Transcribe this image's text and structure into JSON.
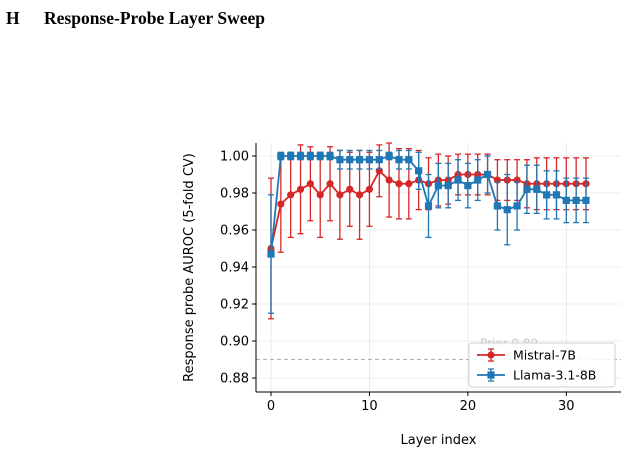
{
  "section": {
    "number": "H",
    "title": "Response-Probe Layer Sweep"
  },
  "chart_data": {
    "type": "line",
    "xlabel": "Layer index",
    "ylabel": "Response probe AUROC (5-fold CV)",
    "xlim": [
      -1.5,
      33.5
    ],
    "ylim": [
      0.872,
      1.008
    ],
    "xticks": [
      0,
      10,
      20,
      30
    ],
    "yticks": [
      0.88,
      0.9,
      0.92,
      0.94,
      0.96,
      0.98,
      1.0
    ],
    "ytick_labels": [
      "0.88",
      "0.90",
      "0.92",
      "0.94",
      "0.96",
      "0.98",
      "1.00"
    ],
    "grid": true,
    "legend_position": "lower-right",
    "reference_line": {
      "y": 0.89,
      "style": "dashed",
      "color": "#b0b0b0",
      "label": "Prior 0.89"
    },
    "series": [
      {
        "name": "Mistral-7B",
        "color": "#d62728",
        "marker": "circle",
        "x": [
          0,
          1,
          2,
          3,
          4,
          5,
          6,
          7,
          8,
          9,
          10,
          11,
          12,
          13,
          14,
          15,
          16,
          17,
          18,
          19,
          20,
          21,
          22,
          23,
          24,
          25,
          26,
          27,
          28,
          29,
          30,
          31,
          32
        ],
        "values": [
          0.95,
          0.974,
          0.979,
          0.982,
          0.985,
          0.979,
          0.985,
          0.979,
          0.982,
          0.979,
          0.982,
          0.992,
          0.987,
          0.985,
          0.985,
          0.987,
          0.985,
          0.987,
          0.987,
          0.99,
          0.99,
          0.99,
          0.99,
          0.987,
          0.987,
          0.987,
          0.985,
          0.985,
          0.985,
          0.985,
          0.985,
          0.985,
          0.985
        ],
        "errors": [
          0.038,
          0.026,
          0.023,
          0.024,
          0.02,
          0.023,
          0.02,
          0.024,
          0.02,
          0.024,
          0.02,
          0.014,
          0.02,
          0.019,
          0.019,
          0.016,
          0.014,
          0.014,
          0.013,
          0.011,
          0.011,
          0.011,
          0.011,
          0.011,
          0.011,
          0.011,
          0.013,
          0.014,
          0.014,
          0.014,
          0.014,
          0.014,
          0.014
        ]
      },
      {
        "name": "Llama-3.1-8B",
        "color": "#1f77b4",
        "marker": "square",
        "x": [
          0,
          1,
          2,
          3,
          4,
          5,
          6,
          7,
          8,
          9,
          10,
          11,
          12,
          13,
          14,
          15,
          16,
          17,
          18,
          19,
          20,
          21,
          22,
          23,
          24,
          25,
          26,
          27,
          28,
          29,
          30,
          31,
          32
        ],
        "values": [
          0.947,
          1.0,
          1.0,
          1.0,
          1.0,
          1.0,
          1.0,
          0.998,
          0.998,
          0.998,
          0.998,
          0.998,
          1.0,
          0.998,
          0.998,
          0.992,
          0.973,
          0.984,
          0.984,
          0.987,
          0.984,
          0.987,
          0.99,
          0.973,
          0.971,
          0.973,
          0.982,
          0.982,
          0.979,
          0.979,
          0.976,
          0.976,
          0.976
        ],
        "errors": [
          0.032,
          0.002,
          0.002,
          0.002,
          0.002,
          0.002,
          0.002,
          0.005,
          0.005,
          0.005,
          0.005,
          0.005,
          0.002,
          0.005,
          0.005,
          0.01,
          0.017,
          0.012,
          0.012,
          0.011,
          0.012,
          0.011,
          0.01,
          0.013,
          0.019,
          0.013,
          0.013,
          0.013,
          0.013,
          0.013,
          0.012,
          0.012,
          0.012
        ]
      }
    ]
  }
}
